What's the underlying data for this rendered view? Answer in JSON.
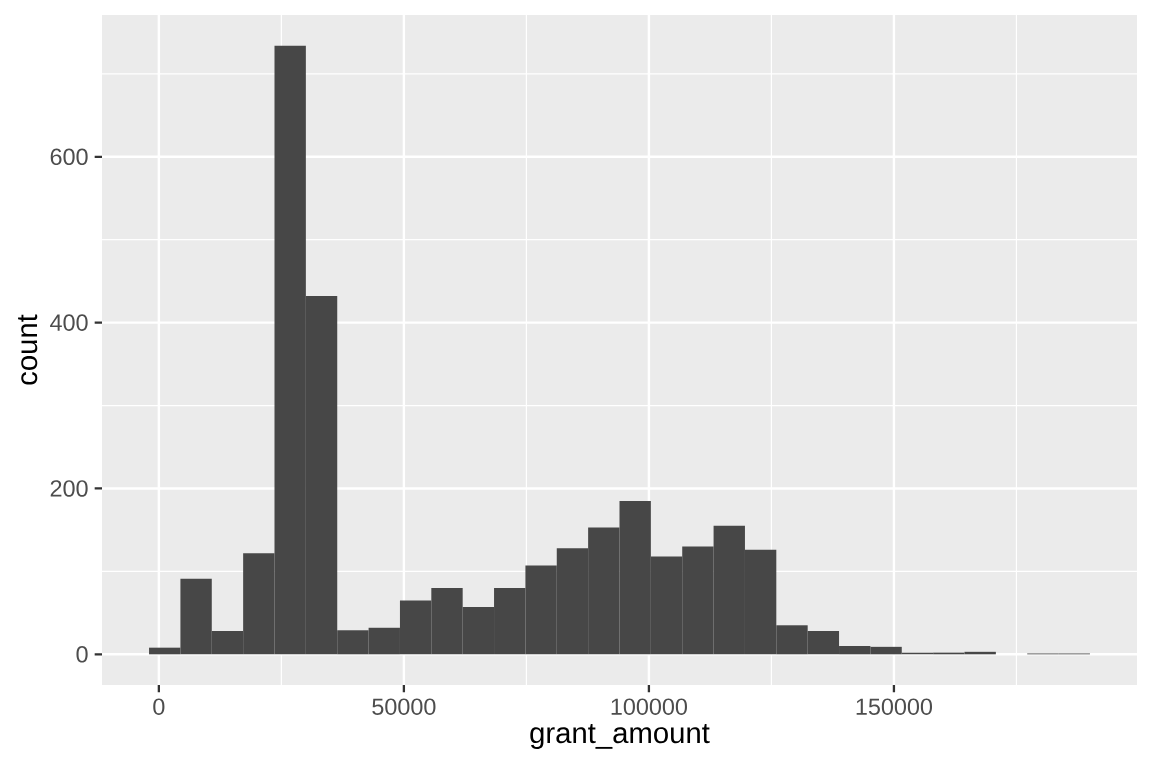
{
  "chart_data": {
    "type": "histogram",
    "xlabel": "grant_amount",
    "ylabel": "count",
    "bins": [
      -2000,
      4400,
      10800,
      17200,
      23600,
      30000,
      36400,
      42800,
      49200,
      55600,
      62000,
      68400,
      74800,
      81200,
      87600,
      94000,
      100400,
      106800,
      113200,
      119600,
      126000,
      132400,
      138800,
      145200,
      151600,
      158000,
      164400,
      170800,
      177200,
      183600,
      190000
    ],
    "values": [
      8,
      91,
      28,
      122,
      734,
      432,
      29,
      32,
      65,
      80,
      57,
      80,
      107,
      128,
      153,
      185,
      118,
      130,
      155,
      126,
      35,
      28,
      10,
      9,
      2,
      2,
      3,
      0,
      1,
      1
    ],
    "color": "#474747",
    "xlim": [
      -11600,
      199600
    ],
    "ylim": [
      -37,
      771
    ],
    "xticks": [
      0,
      50000,
      100000,
      150000
    ],
    "yticks": [
      0,
      200,
      400,
      600
    ],
    "grid": true
  }
}
